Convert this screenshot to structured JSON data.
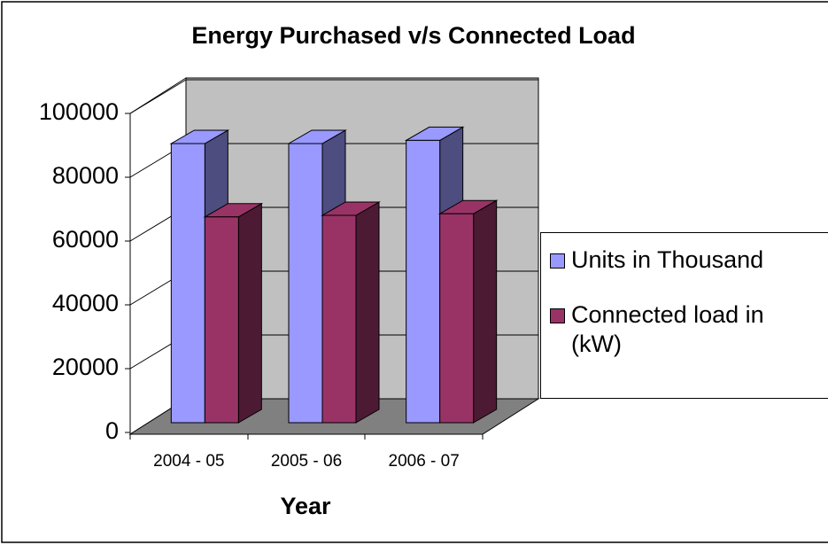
{
  "chart_data": {
    "type": "bar3d",
    "title": "Energy Purchased v/s Connected Load",
    "x_label": "Year",
    "categories": [
      "2004 - 05",
      "2005 - 06",
      "2006 - 07"
    ],
    "series": [
      {
        "name": "Units in Thousand",
        "color": "#9999ff",
        "side_color": "#4d4d80",
        "values": [
          87500,
          87500,
          88500
        ]
      },
      {
        "name": "Connected load in (kW)",
        "color": "#993366",
        "side_color": "#4d1a33",
        "values": [
          64500,
          65000,
          65500
        ]
      }
    ],
    "ylim": [
      0,
      100000
    ],
    "yticks": [
      0,
      20000,
      40000,
      60000,
      80000,
      100000
    ],
    "grid": true,
    "legend": "right"
  }
}
